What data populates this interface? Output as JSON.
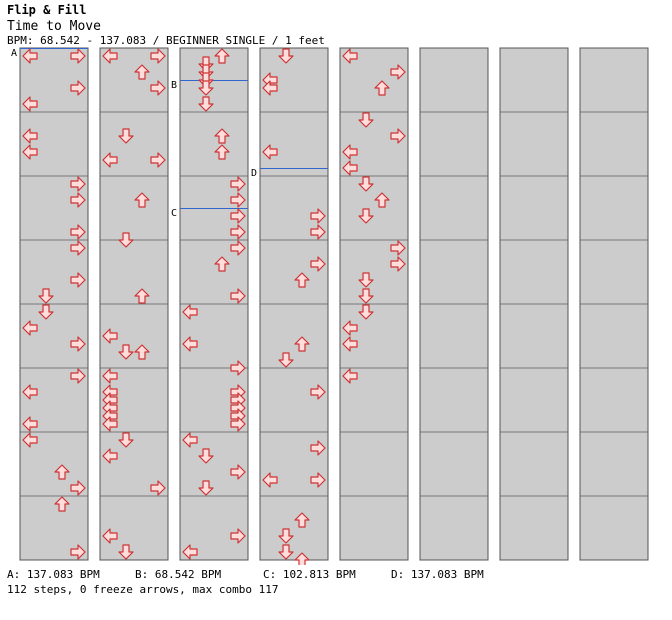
{
  "header": {
    "artist": "Flip & Fill",
    "title": "Time to Move",
    "info": "BPM: 68.542 - 137.083 / BEGINNER SINGLE / 1 feet"
  },
  "chart_data": {
    "type": "step-chart",
    "lanes": [
      "left",
      "down",
      "up",
      "right"
    ],
    "columns": 8,
    "measures_per_column": 8,
    "rows_per_measure": 8,
    "colors": {
      "stripe": "#cccccc",
      "border": "#888888",
      "marker": "#3366cc",
      "arrow_fill": "#ffdddd",
      "arrow_stroke": "#cc3333"
    },
    "steps": [
      [
        0,
        0,
        "l"
      ],
      [
        0,
        0,
        "r"
      ],
      [
        0,
        8,
        "r"
      ],
      [
        0,
        12,
        "l"
      ],
      [
        0,
        20,
        "l"
      ],
      [
        0,
        24,
        "l"
      ],
      [
        0,
        32,
        "r"
      ],
      [
        0,
        36,
        "r"
      ],
      [
        0,
        44,
        "r"
      ],
      [
        0,
        48,
        "r"
      ],
      [
        0,
        56,
        "r"
      ],
      [
        0,
        60,
        "d"
      ],
      [
        0,
        64,
        "d"
      ],
      [
        0,
        68,
        "l"
      ],
      [
        0,
        72,
        "r"
      ],
      [
        0,
        80,
        "r"
      ],
      [
        0,
        84,
        "l"
      ],
      [
        0,
        92,
        "l"
      ],
      [
        0,
        96,
        "l"
      ],
      [
        0,
        104,
        "u"
      ],
      [
        0,
        108,
        "r"
      ],
      [
        0,
        112,
        "u"
      ],
      [
        0,
        124,
        "r"
      ],
      [
        1,
        0,
        "l"
      ],
      [
        1,
        0,
        "r"
      ],
      [
        1,
        4,
        "u"
      ],
      [
        1,
        8,
        "r"
      ],
      [
        1,
        20,
        "d"
      ],
      [
        1,
        26,
        "l"
      ],
      [
        1,
        26,
        "r"
      ],
      [
        1,
        36,
        "u"
      ],
      [
        1,
        46,
        "d"
      ],
      [
        1,
        60,
        "u"
      ],
      [
        1,
        70,
        "l"
      ],
      [
        1,
        74,
        "d"
      ],
      [
        1,
        74,
        "u"
      ],
      [
        1,
        80,
        "l"
      ],
      [
        1,
        84,
        "l"
      ],
      [
        1,
        86,
        "l"
      ],
      [
        1,
        88,
        "l"
      ],
      [
        1,
        90,
        "l"
      ],
      [
        1,
        92,
        "l"
      ],
      [
        1,
        96,
        "d"
      ],
      [
        1,
        100,
        "l"
      ],
      [
        1,
        108,
        "r"
      ],
      [
        1,
        120,
        "l"
      ],
      [
        1,
        124,
        "d"
      ],
      [
        2,
        0,
        "u"
      ],
      [
        2,
        2,
        "d"
      ],
      [
        2,
        4,
        "d"
      ],
      [
        2,
        6,
        "d"
      ],
      [
        2,
        8,
        "d"
      ],
      [
        2,
        12,
        "d"
      ],
      [
        2,
        20,
        "u"
      ],
      [
        2,
        24,
        "u"
      ],
      [
        2,
        32,
        "r"
      ],
      [
        2,
        36,
        "r"
      ],
      [
        2,
        40,
        "r"
      ],
      [
        2,
        44,
        "r"
      ],
      [
        2,
        48,
        "r"
      ],
      [
        2,
        52,
        "u"
      ],
      [
        2,
        60,
        "r"
      ],
      [
        2,
        64,
        "l"
      ],
      [
        2,
        72,
        "l"
      ],
      [
        2,
        78,
        "r"
      ],
      [
        2,
        84,
        "r"
      ],
      [
        2,
        86,
        "r"
      ],
      [
        2,
        88,
        "r"
      ],
      [
        2,
        90,
        "r"
      ],
      [
        2,
        92,
        "r"
      ],
      [
        2,
        96,
        "l"
      ],
      [
        2,
        100,
        "d"
      ],
      [
        2,
        104,
        "r"
      ],
      [
        2,
        108,
        "d"
      ],
      [
        2,
        120,
        "r"
      ],
      [
        2,
        124,
        "l"
      ],
      [
        3,
        0,
        "d"
      ],
      [
        3,
        6,
        "l"
      ],
      [
        3,
        8,
        "l"
      ],
      [
        3,
        24,
        "l"
      ],
      [
        3,
        40,
        "r"
      ],
      [
        3,
        44,
        "r"
      ],
      [
        3,
        52,
        "r"
      ],
      [
        3,
        56,
        "u"
      ],
      [
        3,
        72,
        "u"
      ],
      [
        3,
        76,
        "d"
      ],
      [
        3,
        84,
        "r"
      ],
      [
        3,
        98,
        "r"
      ],
      [
        3,
        106,
        "l"
      ],
      [
        3,
        106,
        "r"
      ],
      [
        3,
        116,
        "u"
      ],
      [
        3,
        120,
        "d"
      ],
      [
        3,
        124,
        "d"
      ],
      [
        3,
        126,
        "u"
      ],
      [
        4,
        0,
        "l"
      ],
      [
        4,
        4,
        "r"
      ],
      [
        4,
        8,
        "u"
      ],
      [
        4,
        16,
        "d"
      ],
      [
        4,
        20,
        "r"
      ],
      [
        4,
        24,
        "l"
      ],
      [
        4,
        28,
        "l"
      ],
      [
        4,
        32,
        "d"
      ],
      [
        4,
        36,
        "u"
      ],
      [
        4,
        40,
        "d"
      ],
      [
        4,
        48,
        "r"
      ],
      [
        4,
        52,
        "r"
      ],
      [
        4,
        56,
        "d"
      ],
      [
        4,
        60,
        "d"
      ],
      [
        4,
        64,
        "d"
      ],
      [
        4,
        68,
        "l"
      ],
      [
        4,
        72,
        "l"
      ],
      [
        4,
        80,
        "l"
      ]
    ]
  },
  "bpm_changes": [
    {
      "marker": "A",
      "column": 0,
      "row": 0,
      "text": "A: 137.083 BPM"
    },
    {
      "marker": "B",
      "column": 2,
      "row": 8,
      "text": "B: 68.542 BPM"
    },
    {
      "marker": "C",
      "column": 2,
      "row": 40,
      "text": "C: 102.813 BPM"
    },
    {
      "marker": "D",
      "column": 3,
      "row": 30,
      "text": "D: 137.083 BPM"
    }
  ],
  "footer": {
    "stats": "112 steps, 0 freeze arrows, max combo 117"
  }
}
